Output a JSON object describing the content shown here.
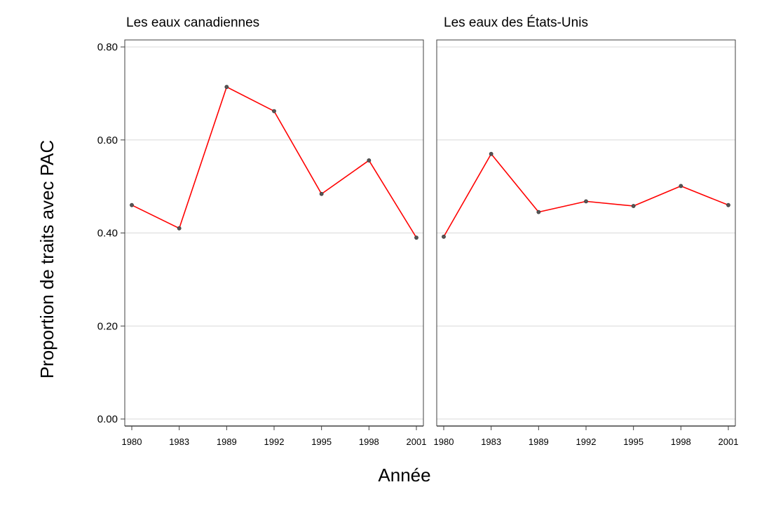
{
  "chart_data": [
    {
      "type": "line",
      "title": "Les eaux canadiennes",
      "x": [
        "1980",
        "1983",
        "1989",
        "1992",
        "1995",
        "1998",
        "2001"
      ],
      "values": [
        0.46,
        0.41,
        0.714,
        0.662,
        0.484,
        0.556,
        0.39
      ],
      "ylim": [
        0.0,
        0.8
      ],
      "yticks": [
        "0.00",
        "0.20",
        "0.40",
        "0.60",
        "0.80"
      ],
      "grid": true
    },
    {
      "type": "line",
      "title": "Les eaux des États-Unis",
      "x": [
        "1980",
        "1983",
        "1989",
        "1992",
        "1995",
        "1998",
        "2001"
      ],
      "values": [
        0.392,
        0.57,
        0.445,
        0.468,
        0.458,
        0.501,
        0.46
      ],
      "ylim": [
        0.0,
        0.8
      ],
      "grid": true
    }
  ],
  "ylabel": "Proportion de traits avec PAC",
  "xlabel": "Année",
  "colors": {
    "line": "#ff0000",
    "marker": "#555555",
    "grid": "#d9d9d9",
    "frame": "#404040"
  }
}
